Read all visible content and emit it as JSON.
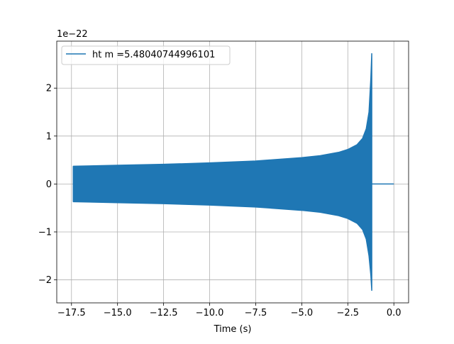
{
  "chart_data": {
    "type": "line",
    "xlabel": "Time (s)",
    "ylabel": "",
    "y_offset_label": "1e−22",
    "x_ticks": [
      {
        "value": -17.5,
        "label": "−17.5"
      },
      {
        "value": -15.0,
        "label": "−15.0"
      },
      {
        "value": -12.5,
        "label": "−12.5"
      },
      {
        "value": -10.0,
        "label": "−10.0"
      },
      {
        "value": -7.5,
        "label": "−7.5"
      },
      {
        "value": -5.0,
        "label": "−5.0"
      },
      {
        "value": -2.5,
        "label": "−2.5"
      },
      {
        "value": 0.0,
        "label": "0.0"
      }
    ],
    "y_ticks": [
      {
        "value": -2,
        "label": "−2"
      },
      {
        "value": -1,
        "label": "−1"
      },
      {
        "value": 0,
        "label": "0"
      },
      {
        "value": 1,
        "label": "1"
      },
      {
        "value": 2,
        "label": "2"
      }
    ],
    "xlim": [
      -18.3,
      0.8
    ],
    "ylim": [
      -2.48,
      2.98
    ],
    "grid": true,
    "legend_position": "top-left",
    "series": [
      {
        "name": "ht m =5.48040744996101",
        "color": "#1f77b4",
        "t_start": -17.4,
        "t_merger": -1.2,
        "t_end": 0.0,
        "envelope_upper": [
          [
            -17.4,
            0.37
          ],
          [
            -15.0,
            0.39
          ],
          [
            -12.5,
            0.41
          ],
          [
            -10.0,
            0.44
          ],
          [
            -7.5,
            0.48
          ],
          [
            -5.0,
            0.55
          ],
          [
            -4.0,
            0.59
          ],
          [
            -3.0,
            0.66
          ],
          [
            -2.5,
            0.72
          ],
          [
            -2.0,
            0.82
          ],
          [
            -1.7,
            0.95
          ],
          [
            -1.5,
            1.15
          ],
          [
            -1.35,
            1.5
          ],
          [
            -1.25,
            2.2
          ],
          [
            -1.2,
            2.72
          ]
        ],
        "envelope_lower": [
          [
            -17.4,
            -0.37
          ],
          [
            -15.0,
            -0.39
          ],
          [
            -12.5,
            -0.41
          ],
          [
            -10.0,
            -0.44
          ],
          [
            -7.5,
            -0.48
          ],
          [
            -5.0,
            -0.55
          ],
          [
            -4.0,
            -0.59
          ],
          [
            -3.0,
            -0.66
          ],
          [
            -2.5,
            -0.72
          ],
          [
            -2.0,
            -0.82
          ],
          [
            -1.7,
            -0.95
          ],
          [
            -1.5,
            -1.15
          ],
          [
            -1.35,
            -1.5
          ],
          [
            -1.25,
            -1.9
          ],
          [
            -1.2,
            -2.22
          ]
        ]
      }
    ]
  }
}
